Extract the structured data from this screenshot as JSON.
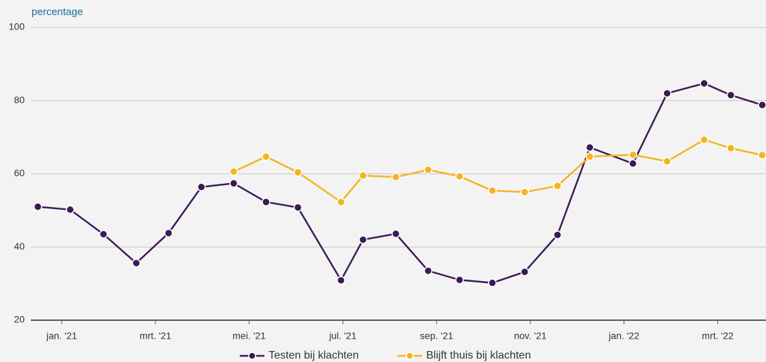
{
  "chart_data": {
    "type": "line",
    "y_label": "percentage",
    "x": [
      -0.51,
      0.18,
      0.89,
      1.59,
      2.28,
      2.98,
      3.67,
      4.36,
      5.04,
      5.96,
      6.43,
      7.13,
      7.82,
      8.49,
      9.19,
      9.88,
      10.58,
      11.27,
      12.19,
      12.92,
      13.71,
      14.28,
      14.95
    ],
    "series": [
      {
        "name": "Testen bij klachten",
        "color": "#3b1a56",
        "values": [
          51,
          50.2,
          43.5,
          35.6,
          43.8,
          56.4,
          57.4,
          52.3,
          50.8,
          30.9,
          42,
          43.6,
          33.5,
          31,
          30.2,
          33.2,
          43.3,
          67.2,
          62.8,
          82,
          84.7,
          81.5,
          78.8
        ]
      },
      {
        "name": "Blijft thuis bij klachten",
        "color": "#f5b41e",
        "values": [
          null,
          null,
          null,
          null,
          null,
          null,
          60.6,
          64.7,
          60.4,
          52.3,
          59.5,
          59.1,
          61.1,
          59.3,
          55.4,
          55,
          56.7,
          64.7,
          65.2,
          63.4,
          69.3,
          67,
          65.1
        ]
      }
    ],
    "xlim": [
      -0.66,
      15.03
    ],
    "xticks": [
      {
        "value": 0,
        "label": "jan. '21"
      },
      {
        "value": 2,
        "label": "mrt. '21"
      },
      {
        "value": 4,
        "label": "mei. '21"
      },
      {
        "value": 6,
        "label": "jul. '21"
      },
      {
        "value": 8,
        "label": "sep. '21"
      },
      {
        "value": 10,
        "label": "nov. '21"
      },
      {
        "value": 12,
        "label": "jan. '22"
      },
      {
        "value": 14,
        "label": "mrt. '22"
      }
    ],
    "ylim": [
      20,
      100
    ],
    "yticks": [
      20,
      40,
      60,
      80,
      100
    ],
    "grid": true,
    "legend": "bottom"
  }
}
